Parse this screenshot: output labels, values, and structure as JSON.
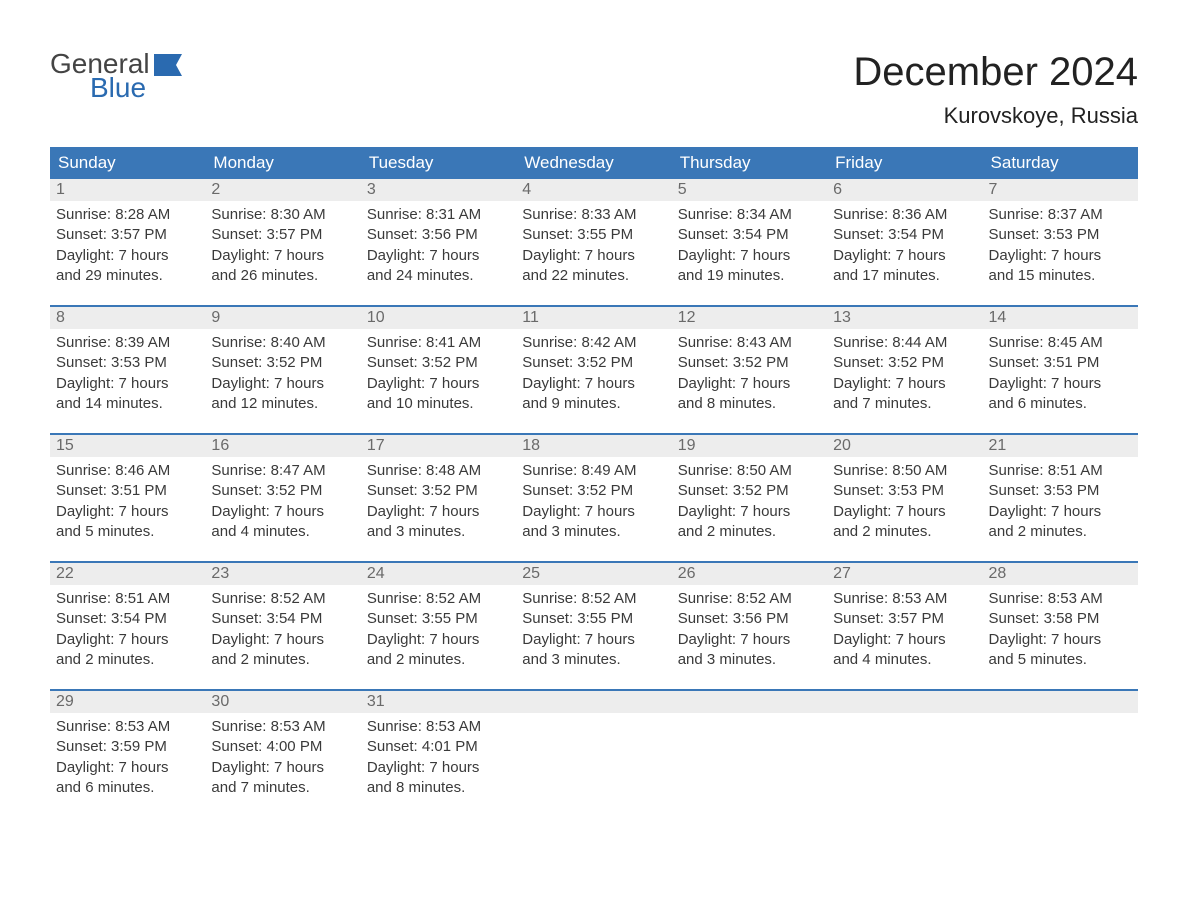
{
  "brand": {
    "line1": "General",
    "line2": "Blue",
    "text_color": "#444444",
    "accent_color": "#2a6ab0"
  },
  "title": "December 2024",
  "location": "Kurovskoye, Russia",
  "colors": {
    "header_bg": "#3a77b7",
    "header_text": "#ffffff",
    "daynum_bg": "#ededed",
    "daynum_text": "#6a6a6a",
    "body_text": "#3a3a3a",
    "week_border": "#3a77b7",
    "background": "#ffffff"
  },
  "fonts": {
    "title_size_pt": 30,
    "location_size_pt": 17,
    "header_size_pt": 13,
    "daynum_size_pt": 12,
    "body_size_pt": 11
  },
  "day_names": [
    "Sunday",
    "Monday",
    "Tuesday",
    "Wednesday",
    "Thursday",
    "Friday",
    "Saturday"
  ],
  "weeks": [
    [
      {
        "n": "1",
        "sunrise": "Sunrise: 8:28 AM",
        "sunset": "Sunset: 3:57 PM",
        "dl1": "Daylight: 7 hours",
        "dl2": "and 29 minutes."
      },
      {
        "n": "2",
        "sunrise": "Sunrise: 8:30 AM",
        "sunset": "Sunset: 3:57 PM",
        "dl1": "Daylight: 7 hours",
        "dl2": "and 26 minutes."
      },
      {
        "n": "3",
        "sunrise": "Sunrise: 8:31 AM",
        "sunset": "Sunset: 3:56 PM",
        "dl1": "Daylight: 7 hours",
        "dl2": "and 24 minutes."
      },
      {
        "n": "4",
        "sunrise": "Sunrise: 8:33 AM",
        "sunset": "Sunset: 3:55 PM",
        "dl1": "Daylight: 7 hours",
        "dl2": "and 22 minutes."
      },
      {
        "n": "5",
        "sunrise": "Sunrise: 8:34 AM",
        "sunset": "Sunset: 3:54 PM",
        "dl1": "Daylight: 7 hours",
        "dl2": "and 19 minutes."
      },
      {
        "n": "6",
        "sunrise": "Sunrise: 8:36 AM",
        "sunset": "Sunset: 3:54 PM",
        "dl1": "Daylight: 7 hours",
        "dl2": "and 17 minutes."
      },
      {
        "n": "7",
        "sunrise": "Sunrise: 8:37 AM",
        "sunset": "Sunset: 3:53 PM",
        "dl1": "Daylight: 7 hours",
        "dl2": "and 15 minutes."
      }
    ],
    [
      {
        "n": "8",
        "sunrise": "Sunrise: 8:39 AM",
        "sunset": "Sunset: 3:53 PM",
        "dl1": "Daylight: 7 hours",
        "dl2": "and 14 minutes."
      },
      {
        "n": "9",
        "sunrise": "Sunrise: 8:40 AM",
        "sunset": "Sunset: 3:52 PM",
        "dl1": "Daylight: 7 hours",
        "dl2": "and 12 minutes."
      },
      {
        "n": "10",
        "sunrise": "Sunrise: 8:41 AM",
        "sunset": "Sunset: 3:52 PM",
        "dl1": "Daylight: 7 hours",
        "dl2": "and 10 minutes."
      },
      {
        "n": "11",
        "sunrise": "Sunrise: 8:42 AM",
        "sunset": "Sunset: 3:52 PM",
        "dl1": "Daylight: 7 hours",
        "dl2": "and 9 minutes."
      },
      {
        "n": "12",
        "sunrise": "Sunrise: 8:43 AM",
        "sunset": "Sunset: 3:52 PM",
        "dl1": "Daylight: 7 hours",
        "dl2": "and 8 minutes."
      },
      {
        "n": "13",
        "sunrise": "Sunrise: 8:44 AM",
        "sunset": "Sunset: 3:52 PM",
        "dl1": "Daylight: 7 hours",
        "dl2": "and 7 minutes."
      },
      {
        "n": "14",
        "sunrise": "Sunrise: 8:45 AM",
        "sunset": "Sunset: 3:51 PM",
        "dl1": "Daylight: 7 hours",
        "dl2": "and 6 minutes."
      }
    ],
    [
      {
        "n": "15",
        "sunrise": "Sunrise: 8:46 AM",
        "sunset": "Sunset: 3:51 PM",
        "dl1": "Daylight: 7 hours",
        "dl2": "and 5 minutes."
      },
      {
        "n": "16",
        "sunrise": "Sunrise: 8:47 AM",
        "sunset": "Sunset: 3:52 PM",
        "dl1": "Daylight: 7 hours",
        "dl2": "and 4 minutes."
      },
      {
        "n": "17",
        "sunrise": "Sunrise: 8:48 AM",
        "sunset": "Sunset: 3:52 PM",
        "dl1": "Daylight: 7 hours",
        "dl2": "and 3 minutes."
      },
      {
        "n": "18",
        "sunrise": "Sunrise: 8:49 AM",
        "sunset": "Sunset: 3:52 PM",
        "dl1": "Daylight: 7 hours",
        "dl2": "and 3 minutes."
      },
      {
        "n": "19",
        "sunrise": "Sunrise: 8:50 AM",
        "sunset": "Sunset: 3:52 PM",
        "dl1": "Daylight: 7 hours",
        "dl2": "and 2 minutes."
      },
      {
        "n": "20",
        "sunrise": "Sunrise: 8:50 AM",
        "sunset": "Sunset: 3:53 PM",
        "dl1": "Daylight: 7 hours",
        "dl2": "and 2 minutes."
      },
      {
        "n": "21",
        "sunrise": "Sunrise: 8:51 AM",
        "sunset": "Sunset: 3:53 PM",
        "dl1": "Daylight: 7 hours",
        "dl2": "and 2 minutes."
      }
    ],
    [
      {
        "n": "22",
        "sunrise": "Sunrise: 8:51 AM",
        "sunset": "Sunset: 3:54 PM",
        "dl1": "Daylight: 7 hours",
        "dl2": "and 2 minutes."
      },
      {
        "n": "23",
        "sunrise": "Sunrise: 8:52 AM",
        "sunset": "Sunset: 3:54 PM",
        "dl1": "Daylight: 7 hours",
        "dl2": "and 2 minutes."
      },
      {
        "n": "24",
        "sunrise": "Sunrise: 8:52 AM",
        "sunset": "Sunset: 3:55 PM",
        "dl1": "Daylight: 7 hours",
        "dl2": "and 2 minutes."
      },
      {
        "n": "25",
        "sunrise": "Sunrise: 8:52 AM",
        "sunset": "Sunset: 3:55 PM",
        "dl1": "Daylight: 7 hours",
        "dl2": "and 3 minutes."
      },
      {
        "n": "26",
        "sunrise": "Sunrise: 8:52 AM",
        "sunset": "Sunset: 3:56 PM",
        "dl1": "Daylight: 7 hours",
        "dl2": "and 3 minutes."
      },
      {
        "n": "27",
        "sunrise": "Sunrise: 8:53 AM",
        "sunset": "Sunset: 3:57 PM",
        "dl1": "Daylight: 7 hours",
        "dl2": "and 4 minutes."
      },
      {
        "n": "28",
        "sunrise": "Sunrise: 8:53 AM",
        "sunset": "Sunset: 3:58 PM",
        "dl1": "Daylight: 7 hours",
        "dl2": "and 5 minutes."
      }
    ],
    [
      {
        "n": "29",
        "sunrise": "Sunrise: 8:53 AM",
        "sunset": "Sunset: 3:59 PM",
        "dl1": "Daylight: 7 hours",
        "dl2": "and 6 minutes."
      },
      {
        "n": "30",
        "sunrise": "Sunrise: 8:53 AM",
        "sunset": "Sunset: 4:00 PM",
        "dl1": "Daylight: 7 hours",
        "dl2": "and 7 minutes."
      },
      {
        "n": "31",
        "sunrise": "Sunrise: 8:53 AM",
        "sunset": "Sunset: 4:01 PM",
        "dl1": "Daylight: 7 hours",
        "dl2": "and 8 minutes."
      },
      {
        "empty": true
      },
      {
        "empty": true
      },
      {
        "empty": true
      },
      {
        "empty": true
      }
    ]
  ]
}
